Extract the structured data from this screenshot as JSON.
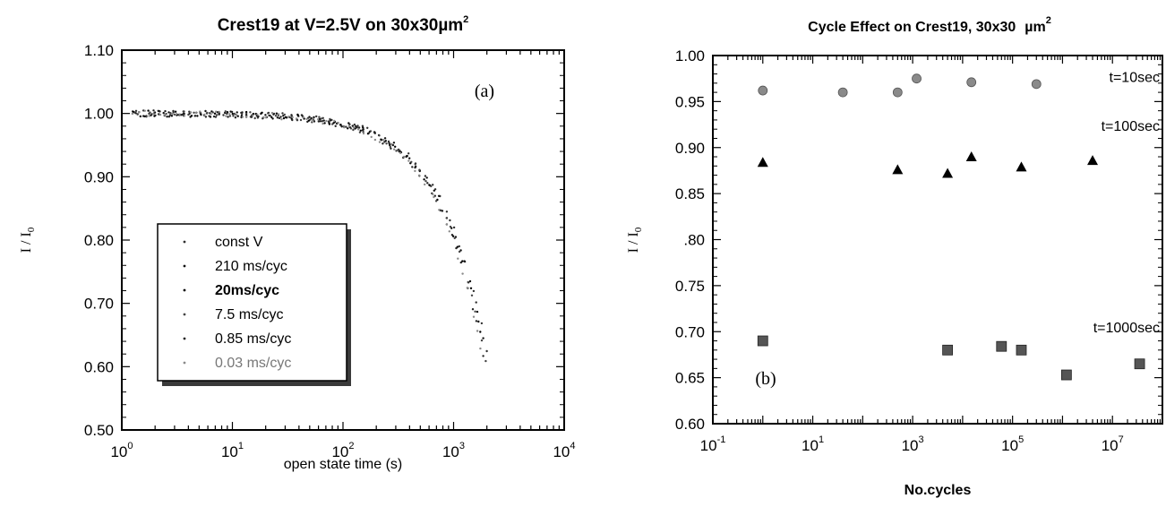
{
  "chart_data": [
    {
      "type": "scatter",
      "title": "Crest19 at V=2.5V on 30x30",
      "title_unit": "µm",
      "title_exp": "2",
      "xlabel": "open state time (s)",
      "ylabel_main": "I / I",
      "ylabel_sub": "0",
      "xscale": "log",
      "xlim": [
        1,
        10000
      ],
      "ylim": [
        0.5,
        1.1
      ],
      "x_ticks": [
        {
          "base": "10",
          "exp": "0",
          "value": 1
        },
        {
          "base": "10",
          "exp": "1",
          "value": 10
        },
        {
          "base": "10",
          "exp": "2",
          "value": 100
        },
        {
          "base": "10",
          "exp": "3",
          "value": 1000
        },
        {
          "base": "10",
          "exp": "4",
          "value": 10000
        }
      ],
      "y_ticks": [
        "0.50",
        "0.60",
        "0.70",
        "0.80",
        "0.90",
        "1.00",
        "1.10"
      ],
      "panel_label": "(a)",
      "legend_position": "bottom-left",
      "series": [
        {
          "name": "const V",
          "color": "#303030",
          "x_end": 2000,
          "y_end": 0.625
        },
        {
          "name": "210 ms/cyc",
          "color": "#111111",
          "x_end": 2000,
          "y_end": 0.615
        },
        {
          "name": "20ms/cyc",
          "color": "#000000",
          "x_end": 2000,
          "y_end": 0.605
        },
        {
          "name": "7.5 ms/cyc",
          "color": "#444444",
          "x_end": 2000,
          "y_end": 0.595
        },
        {
          "name": "0.85 ms/cyc",
          "color": "#222222",
          "x_end": 2000,
          "y_end": 0.585
        },
        {
          "name": "0.03 ms/cyc",
          "color": "#8a8a8a",
          "x_end": 2000,
          "y_end": 0.575
        }
      ]
    },
    {
      "type": "scatter",
      "title": "Cycle Effect on Crest19, 30x30",
      "title_unit": "µm",
      "title_exp": "2",
      "xlabel": "No.cycles",
      "ylabel_main": "I / I",
      "ylabel_sub": "0",
      "xscale": "log",
      "xlim": [
        0.1,
        100000000
      ],
      "ylim": [
        0.6,
        1.0
      ],
      "x_ticks": [
        {
          "base": "10",
          "exp": "-1",
          "value": 0.1
        },
        {
          "base": "10",
          "exp": "1",
          "value": 10
        },
        {
          "base": "10",
          "exp": "3",
          "value": 1000
        },
        {
          "base": "10",
          "exp": "5",
          "value": 100000
        },
        {
          "base": "10",
          "exp": "7",
          "value": 10000000
        }
      ],
      "y_ticks": [
        "0.60",
        "0.65",
        "0.70",
        "0.75",
        ".80",
        "0.85",
        "0.90",
        "0.95",
        "1.00"
      ],
      "panel_label": "(b)",
      "series": [
        {
          "name": "t=10sec",
          "marker": "circle",
          "color": "#8a8a8a",
          "x": [
            1,
            40,
            500,
            1200,
            15000,
            300000
          ],
          "y": [
            0.962,
            0.96,
            0.96,
            0.975,
            0.971,
            0.969
          ]
        },
        {
          "name": "t=100sec",
          "marker": "triangle",
          "color": "#000000",
          "x": [
            1,
            500,
            5000,
            15000,
            150000,
            4000000
          ],
          "y": [
            0.884,
            0.876,
            0.872,
            0.89,
            0.879,
            0.886
          ]
        },
        {
          "name": "t=1000sec",
          "marker": "square",
          "color": "#555555",
          "x": [
            1,
            5000,
            60000,
            150000,
            1200000,
            35000000
          ],
          "y": [
            0.69,
            0.68,
            0.684,
            0.68,
            0.653,
            0.665
          ]
        }
      ]
    }
  ]
}
